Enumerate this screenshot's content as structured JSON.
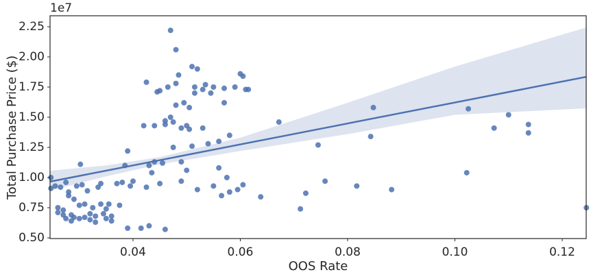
{
  "chart_data": {
    "type": "scatter",
    "x_label": "OOS Rate",
    "y_label": "Total Purchase Price ($)",
    "y_offset_label": "1e7",
    "color": "#4c72b0",
    "band_color": "#dde3ef",
    "grid": false,
    "xlim": [
      0.02454,
      0.12447
    ],
    "ylim": [
      0.4943,
      2.341
    ],
    "xticks": [
      0.04,
      0.06,
      0.08,
      {
        "value": 0.1,
        "label": "0.10"
      },
      0.12
    ],
    "yticks": [
      {
        "value": 0.5,
        "label": "0.50"
      },
      0.75,
      {
        "value": 1,
        "label": "1.00"
      },
      1.25,
      {
        "value": 1.5,
        "label": "1.50"
      },
      1.75,
      {
        "value": 2,
        "label": "2.00"
      },
      2.25
    ],
    "x": [
      0.0247,
      0.0247,
      0.0255,
      0.026,
      0.026,
      0.0265,
      0.027,
      0.027,
      0.0275,
      0.0275,
      0.028,
      0.028,
      0.0285,
      0.0285,
      0.029,
      0.029,
      0.0295,
      0.03,
      0.03,
      0.0302,
      0.0305,
      0.031,
      0.031,
      0.0315,
      0.032,
      0.032,
      0.0325,
      0.033,
      0.033,
      0.0335,
      0.034,
      0.034,
      0.0345,
      0.035,
      0.035,
      0.0355,
      0.036,
      0.036,
      0.037,
      0.0375,
      0.038,
      0.0385,
      0.039,
      0.039,
      0.0395,
      0.04,
      0.0415,
      0.042,
      0.0425,
      0.0425,
      0.043,
      0.043,
      0.0435,
      0.044,
      0.044,
      0.0445,
      0.045,
      0.045,
      0.0455,
      0.046,
      0.046,
      0.046,
      0.0465,
      0.047,
      0.047,
      0.0475,
      0.0475,
      0.048,
      0.048,
      0.0485,
      0.048,
      0.049,
      0.049,
      0.049,
      0.0495,
      0.05,
      0.05,
      0.0505,
      0.0505,
      0.051,
      0.051,
      0.0515,
      0.0515,
      0.052,
      0.052,
      0.053,
      0.053,
      0.0535,
      0.054,
      0.0545,
      0.055,
      0.055,
      0.056,
      0.056,
      0.0565,
      0.057,
      0.057,
      0.0575,
      0.058,
      0.058,
      0.059,
      0.0595,
      0.06,
      0.0605,
      0.0605,
      0.061,
      0.0615,
      0.0638,
      0.0672,
      0.0712,
      0.0722,
      0.0745,
      0.0758,
      0.0817,
      0.0843,
      0.0848,
      0.0882,
      0.1022,
      0.1025,
      0.1073,
      0.11,
      0.1137,
      0.1137,
      0.1245
    ],
    "values": [
      1.0,
      0.91,
      0.93,
      0.75,
      0.71,
      0.92,
      0.73,
      0.69,
      0.66,
      0.96,
      0.88,
      0.85,
      0.69,
      0.64,
      0.82,
      0.67,
      0.93,
      0.77,
      0.66,
      1.11,
      0.94,
      0.78,
      0.67,
      0.89,
      0.65,
      0.7,
      0.75,
      0.63,
      0.68,
      0.92,
      0.95,
      0.78,
      0.7,
      0.74,
      0.66,
      0.78,
      0.68,
      0.64,
      0.95,
      0.77,
      0.96,
      1.1,
      1.22,
      0.58,
      0.93,
      0.97,
      0.58,
      1.43,
      1.79,
      0.92,
      1.1,
      0.6,
      1.04,
      1.13,
      1.43,
      1.71,
      1.72,
      0.95,
      1.12,
      1.44,
      1.47,
      0.57,
      1.75,
      2.22,
      1.5,
      1.46,
      1.25,
      2.06,
      1.78,
      1.85,
      1.6,
      1.41,
      1.13,
      0.97,
      1.62,
      1.43,
      1.06,
      1.4,
      1.58,
      1.92,
      1.26,
      1.7,
      1.75,
      1.9,
      0.9,
      1.73,
      1.41,
      1.77,
      1.28,
      1.7,
      1.75,
      0.93,
      1.3,
      1.08,
      0.85,
      1.62,
      1.74,
      1.0,
      1.35,
      0.88,
      1.75,
      0.9,
      1.86,
      1.84,
      0.94,
      1.73,
      1.73,
      0.84,
      1.46,
      0.74,
      0.87,
      1.27,
      0.97,
      0.93,
      1.34,
      1.58,
      0.9,
      1.04,
      1.57,
      1.41,
      1.52,
      1.44,
      1.37,
      0.75
    ],
    "regression": {
      "x": [
        0.0245,
        0.1245
      ],
      "y": [
        0.966,
        1.835
      ]
    },
    "band": {
      "x": [
        0.0245,
        0.035,
        0.045,
        0.06,
        0.08,
        0.1,
        0.1245
      ],
      "upper": [
        1.057,
        1.1,
        1.17,
        1.33,
        1.62,
        1.92,
        2.244
      ],
      "lower": [
        0.892,
        1.01,
        1.11,
        1.22,
        1.36,
        1.52,
        1.574
      ]
    }
  }
}
